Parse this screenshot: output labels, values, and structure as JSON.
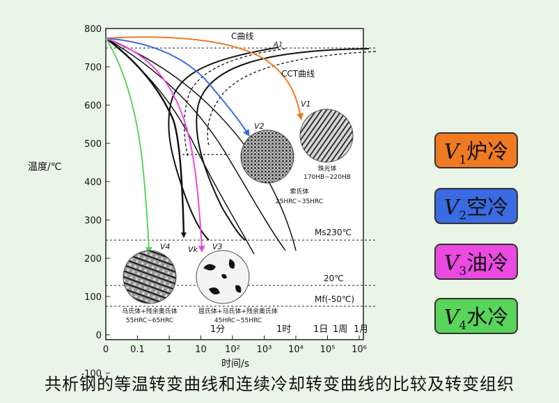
{
  "y_axis": {
    "label": "温度/℃",
    "ticks": [
      "800",
      "700",
      "600",
      "500",
      "400",
      "300",
      "200",
      "100",
      "0",
      "-100"
    ]
  },
  "x_axis": {
    "label": "时间/s",
    "ticks": [
      "0",
      "0.1",
      "1",
      "10",
      "10²",
      "10³",
      "10⁴",
      "10⁵",
      "10⁶"
    ],
    "time_marks": [
      "1分",
      "1时",
      "1日",
      "1周",
      "1月"
    ]
  },
  "curve_labels": {
    "c_curve": "C曲线",
    "cct_curve": "CCT曲线",
    "a1": "A1",
    "ms": "Ms230℃",
    "t20": "20℃",
    "mf": "Mf(-50℃)"
  },
  "rate_labels": {
    "v1": "V1",
    "v2": "V2",
    "v3": "V3",
    "v4": "V4",
    "vk": "Vk"
  },
  "micrographs": {
    "v1": {
      "name": "珠光体",
      "hardness": "170HB~220HB"
    },
    "v2": {
      "name": "索氏体",
      "hardness": "25HRC~35HRC"
    },
    "v3": {
      "name": "屈氏体+马氏体+残余奥氏体",
      "hardness": "45HRC~55HRC"
    },
    "v4": {
      "name": "马氏体+残余奥氏体",
      "hardness": "55HRC~65HRC"
    }
  },
  "legend": [
    {
      "prefix": "V",
      "sub": "1",
      "text": "炉冷",
      "color": "#f07a22"
    },
    {
      "prefix": "V",
      "sub": "2",
      "text": "空冷",
      "color": "#3a6be0"
    },
    {
      "prefix": "V",
      "sub": "3",
      "text": "油冷",
      "color": "#ea4ae0"
    },
    {
      "prefix": "V",
      "sub": "4",
      "text": "水冷",
      "color": "#58d55a"
    }
  ],
  "caption": "共析钢的等温转变曲线和连续冷却转变曲线的比较及转变组织"
}
